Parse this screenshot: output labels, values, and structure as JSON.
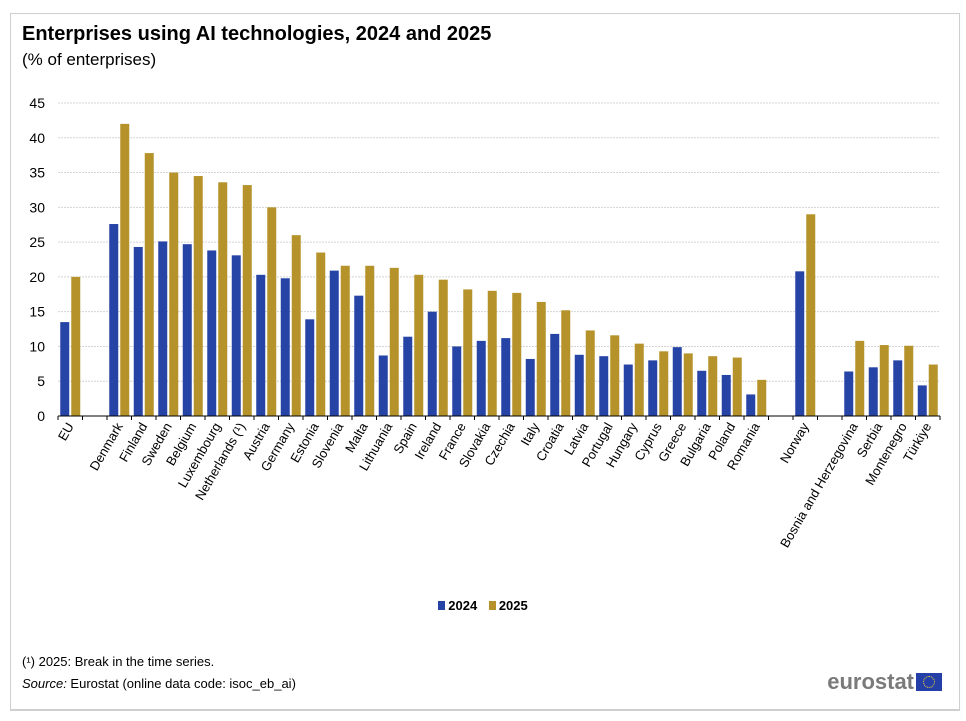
{
  "chart_data": {
    "type": "bar",
    "title": "Enterprises using AI technologies, 2024 and 2025",
    "subtitle": "(% of enterprises)",
    "xlabel": "",
    "ylabel": "",
    "ylim": [
      0,
      45
    ],
    "yticks": [
      0,
      5,
      10,
      15,
      20,
      25,
      30,
      35,
      40,
      45
    ],
    "grid": true,
    "legend_position": "bottom-center",
    "categories": [
      "EU",
      "",
      "Denmark",
      "Finland",
      "Sweden",
      "Belgium",
      "Luxembourg",
      "Netherlands (¹)",
      "Austria",
      "Germany",
      "Estonia",
      "Slovenia",
      "Malta",
      "Lithuania",
      "Spain",
      "Ireland",
      "France",
      "Slovakia",
      "Czechia",
      "Italy",
      "Croatia",
      "Latvia",
      "Portugal",
      "Hungary",
      "Cyprus",
      "Greece",
      "Bulgaria",
      "Poland",
      "Romania",
      "",
      "Norway",
      "",
      "Bosnia and Herzegovina",
      "Serbia",
      "Montenegro",
      "Türkiye"
    ],
    "series": [
      {
        "name": "2024",
        "color": "#2644a6",
        "values": [
          13.5,
          null,
          27.6,
          24.3,
          25.1,
          24.7,
          23.8,
          23.1,
          20.3,
          19.8,
          13.9,
          20.9,
          17.3,
          8.7,
          11.4,
          15.0,
          10.0,
          10.8,
          11.2,
          8.2,
          11.8,
          8.8,
          8.6,
          7.4,
          8.0,
          9.9,
          6.5,
          5.9,
          3.1,
          null,
          20.8,
          null,
          6.4,
          7.0,
          8.0,
          4.4
        ]
      },
      {
        "name": "2025",
        "color": "#b5932a",
        "values": [
          20.0,
          null,
          42.0,
          37.8,
          35.0,
          34.5,
          33.6,
          33.2,
          30.0,
          26.0,
          23.5,
          21.6,
          21.6,
          21.3,
          20.3,
          19.6,
          18.2,
          18.0,
          17.7,
          16.4,
          15.2,
          12.3,
          11.6,
          10.4,
          9.3,
          9.0,
          8.6,
          8.4,
          5.2,
          null,
          29.0,
          null,
          10.8,
          10.2,
          10.1,
          7.4
        ]
      }
    ]
  },
  "footer": {
    "footnote": "(¹) 2025: Break in the time series.",
    "source_label": "Source:",
    "source_text": " Eurostat (online data code: isoc_eb_ai)",
    "logo_text": "eurostat"
  }
}
